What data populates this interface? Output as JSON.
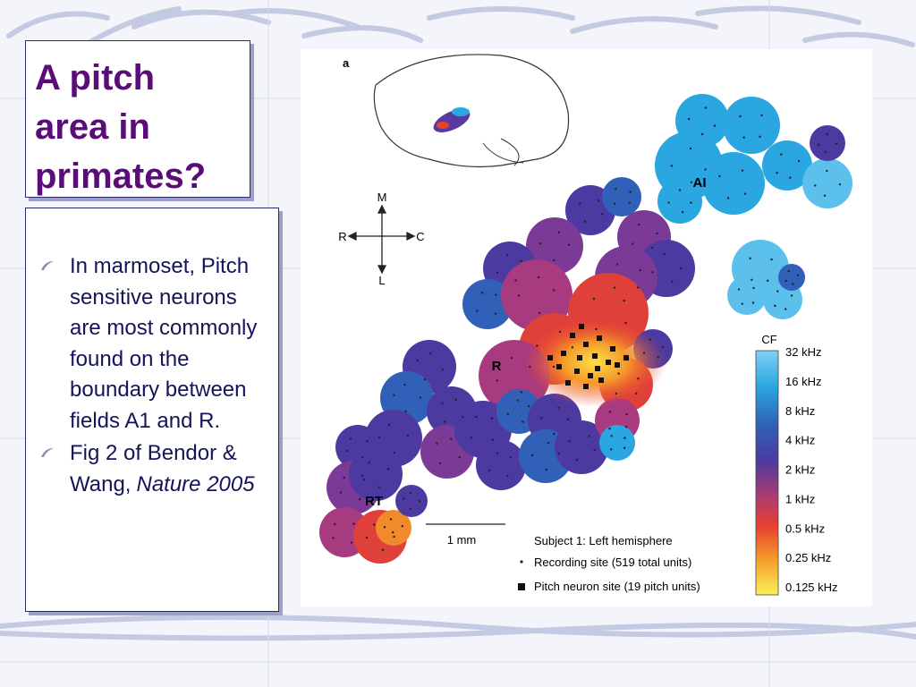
{
  "title": "A pitch area in primates?",
  "bullets": [
    {
      "text": "In marmoset, Pitch sensitive neurons are most commonly found on the boundary between fields A1 and R."
    },
    {
      "text": "Fig 2 of Bendor & Wang,",
      "citation": "Nature 2005"
    }
  ],
  "figure": {
    "panel_label": "a",
    "orientation": {
      "medial": "M",
      "rostral": "R",
      "caudal": "C",
      "lateral": "L"
    },
    "field_labels": [
      "AI",
      "R",
      "RT"
    ],
    "scale_bar": "1 mm",
    "colorbar": {
      "title": "CF",
      "labels": [
        "32 kHz",
        "16 kHz",
        "8 kHz",
        "4 kHz",
        "2 kHz",
        "1 kHz",
        "0.5 kHz",
        "0.25 kHz",
        "0.125 kHz"
      ]
    },
    "legend": {
      "subject": "Subject 1: Left hemisphere",
      "recording_site": "Recording site (519 total units)",
      "pitch_site": "Pitch neuron site (19 pitch units)"
    }
  }
}
